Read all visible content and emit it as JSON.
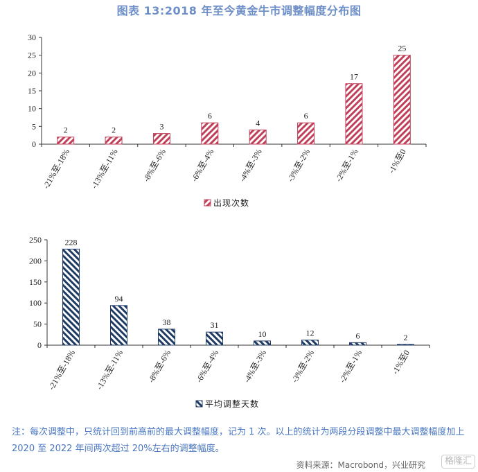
{
  "title": "图表 13:2018 年至今黄金牛市调整幅度分布图",
  "chart_data": [
    {
      "type": "bar",
      "categories": [
        "-21%至-18%",
        "-13%至-11%",
        "-8%至-6%",
        "-6%至-4%",
        "-4%至-3%",
        "-3%至-2%",
        "-2%至-1%",
        "-1%至0"
      ],
      "series": [
        {
          "name": "出现次数",
          "values": [
            2,
            2,
            3,
            6,
            4,
            6,
            17,
            25
          ]
        }
      ],
      "ylim": [
        0,
        30
      ],
      "yticks": [
        0,
        5,
        10,
        15,
        20,
        25,
        30
      ],
      "legend_position": "bottom-center",
      "grid": false,
      "color": "#c0405a",
      "pattern": "diagonal-hatch"
    },
    {
      "type": "bar",
      "categories": [
        "-21%至-18%",
        "-13%至-11%",
        "-8%至-6%",
        "-6%至-4%",
        "-4%至-3%",
        "-3%至-2%",
        "-2%至-1%",
        "-1%至0"
      ],
      "series": [
        {
          "name": "平均调整天数",
          "values": [
            228,
            94,
            38,
            31,
            10,
            12,
            6,
            2
          ]
        }
      ],
      "ylim": [
        0,
        250
      ],
      "yticks": [
        0,
        50,
        100,
        150,
        200,
        250
      ],
      "legend_position": "bottom-center",
      "grid": false,
      "color": "#1f3b64",
      "pattern": "diagonal-hatch"
    }
  ],
  "note": "注：每次调整中，只统计回到前高前的最大调整幅度，记为 1 次。以上的统计为两段分段调整中最大调整幅度加上 2020 至 2022 年间两次超过 20%左右的调整幅度。",
  "source": "资料来源：Macrobond，兴业研究",
  "watermark": "格隆汇"
}
